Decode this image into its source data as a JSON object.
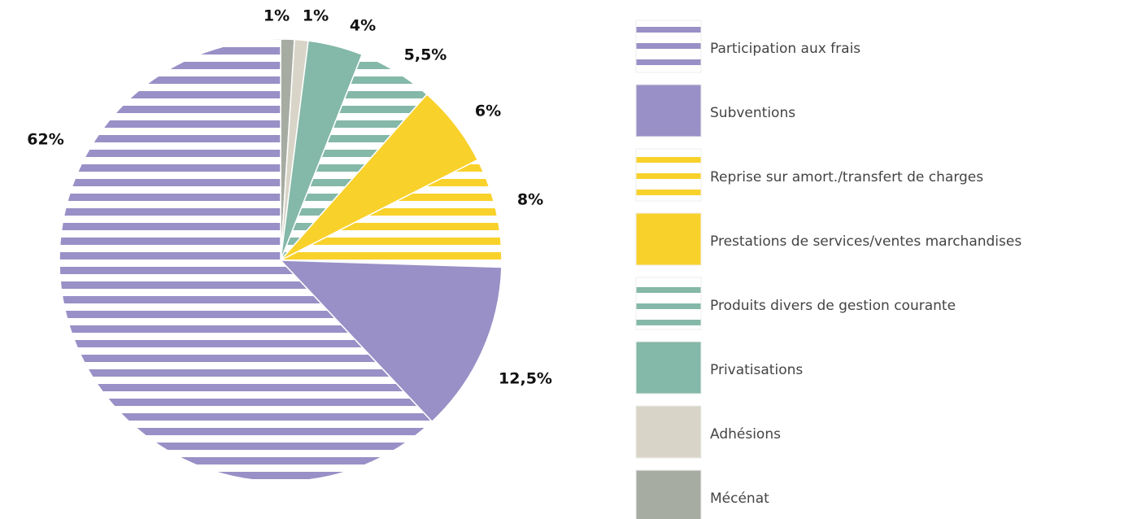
{
  "chart_data": {
    "type": "pie",
    "categories": [
      "Participation aux frais",
      "Subventions",
      "Reprise sur amort./transfert de charges",
      "Prestations de services/ventes marchandises",
      "Produits divers de gestion courante",
      "Privatisations",
      "Adhésions",
      "Mécénat"
    ],
    "values": [
      62,
      12.5,
      8,
      6,
      5.5,
      4,
      1,
      1
    ],
    "value_labels": [
      "62%",
      "12,5%",
      "8%",
      "6%",
      "5,5%",
      "4%",
      "1%",
      "1%"
    ],
    "colors": [
      "#9890c6",
      "#9890c6",
      "#f9d12b",
      "#f9d12b",
      "#84b8a8",
      "#84b8a8",
      "#d8d5c8",
      "#a6aca2"
    ],
    "striped": [
      true,
      false,
      true,
      false,
      true,
      false,
      false,
      false
    ],
    "legend": "right"
  }
}
